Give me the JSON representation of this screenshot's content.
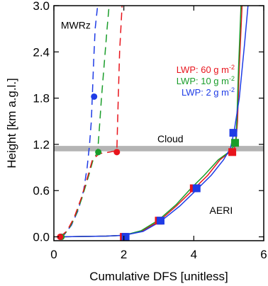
{
  "chart_data": {
    "type": "line",
    "title": "",
    "xlabel": "Cumulative DFS [unitless]",
    "ylabel": "Height [km a.g.l.]",
    "xlim": [
      0,
      6
    ],
    "ylim": [
      -0.05,
      3.0
    ],
    "xticks": [
      0,
      2,
      4,
      6
    ],
    "yticks": [
      0.0,
      0.6,
      1.2,
      1.8,
      2.4,
      3.0
    ],
    "xtick_labels": [
      "0",
      "2",
      "4",
      "6"
    ],
    "ytick_labels": [
      "0.0",
      "0.6",
      "1.2",
      "1.8",
      "2.4",
      "3.0"
    ],
    "grid": false,
    "legend": "top-right, inside",
    "cloud_band": {
      "label": "Cloud",
      "y_from": 1.11,
      "y_to": 1.18,
      "color": "#b4b4b4"
    },
    "annotations": [
      {
        "text": "MWRz",
        "x": 0.2,
        "y": 2.7
      },
      {
        "text": "AERI",
        "x": 4.45,
        "y": 0.3
      }
    ],
    "legend_entries": [
      {
        "text": "LWP: 60 g m",
        "sup": "-2",
        "color": "#e8141c"
      },
      {
        "text": "LWP: 10 g m",
        "sup": "-2",
        "color": "#1a9d2a"
      },
      {
        "text": "LWP: 2 g m",
        "sup": "-2",
        "color": "#1f3ce6"
      }
    ],
    "series": [
      {
        "group": "MWRz",
        "lwp": 2,
        "style": "dashed",
        "color": "#1f3ce6",
        "x": [
          0.16,
          0.3,
          0.5,
          0.7,
          0.85,
          0.95,
          1.02,
          1.07,
          1.1,
          1.14,
          1.18,
          1.25
        ],
        "y": [
          0.0,
          0.03,
          0.15,
          0.35,
          0.6,
          0.9,
          1.2,
          1.5,
          1.85,
          2.3,
          2.7,
          3.0
        ],
        "markers": [
          {
            "x": 0.2,
            "y": 0.0
          },
          {
            "x": 1.15,
            "y": 1.82
          }
        ]
      },
      {
        "group": "MWRz",
        "lwp": 10,
        "style": "dashed",
        "color": "#1a9d2a",
        "x": [
          0.2,
          0.4,
          0.6,
          0.8,
          1.0,
          1.12,
          1.25,
          1.3,
          1.36,
          1.45,
          1.52,
          1.58
        ],
        "y": [
          0.0,
          0.08,
          0.25,
          0.5,
          0.8,
          1.0,
          1.1,
          1.4,
          1.8,
          2.3,
          2.7,
          3.0
        ],
        "markers": [
          {
            "x": 0.22,
            "y": 0.0
          },
          {
            "x": 1.27,
            "y": 1.1
          }
        ]
      },
      {
        "group": "MWRz",
        "lwp": 60,
        "style": "dashed",
        "color": "#e8141c",
        "x": [
          0.18,
          0.38,
          0.58,
          0.78,
          0.98,
          1.1,
          1.3,
          1.6,
          1.8,
          1.84,
          1.88,
          1.95
        ],
        "y": [
          0.0,
          0.08,
          0.25,
          0.5,
          0.8,
          1.0,
          1.08,
          1.1,
          1.12,
          1.8,
          2.4,
          3.0
        ],
        "markers": [
          {
            "x": 0.18,
            "y": 0.0
          },
          {
            "x": 1.8,
            "y": 1.1
          }
        ]
      },
      {
        "group": "AERI",
        "lwp": 60,
        "style": "solid",
        "color": "#e8141c",
        "x": [
          0.1,
          0.8,
          1.5,
          2.0,
          2.5,
          3.0,
          3.5,
          4.0,
          4.4,
          4.75,
          5.0,
          5.12,
          5.2,
          5.25,
          5.3,
          5.38
        ],
        "y": [
          0.0,
          0.005,
          0.01,
          0.02,
          0.07,
          0.2,
          0.4,
          0.62,
          0.8,
          1.0,
          1.09,
          1.1,
          1.2,
          1.5,
          2.2,
          3.0
        ],
        "markers": [
          {
            "x": 2.0,
            "y": 0.0
          },
          {
            "x": 3.0,
            "y": 0.21
          },
          {
            "x": 4.0,
            "y": 0.63
          },
          {
            "x": 5.1,
            "y": 1.1
          }
        ]
      },
      {
        "group": "AERI",
        "lwp": 10,
        "style": "solid",
        "color": "#1a9d2a",
        "x": [
          0.1,
          0.8,
          1.5,
          2.0,
          2.5,
          3.0,
          3.5,
          3.9,
          4.3,
          4.7,
          5.0,
          5.15,
          5.2,
          5.23,
          5.28,
          5.35
        ],
        "y": [
          0.0,
          0.005,
          0.01,
          0.02,
          0.08,
          0.22,
          0.42,
          0.62,
          0.8,
          1.0,
          1.1,
          1.18,
          1.23,
          1.5,
          2.2,
          3.0
        ],
        "markers": [
          {
            "x": 5.18,
            "y": 1.22
          }
        ]
      },
      {
        "group": "AERI",
        "lwp": 2,
        "style": "solid",
        "color": "#1f3ce6",
        "x": [
          0.1,
          0.8,
          1.5,
          2.0,
          2.55,
          3.05,
          3.6,
          4.1,
          4.5,
          4.85,
          5.05,
          5.12,
          5.15,
          5.3,
          5.45,
          5.55
        ],
        "y": [
          0.0,
          0.005,
          0.01,
          0.02,
          0.07,
          0.2,
          0.4,
          0.62,
          0.8,
          1.0,
          1.15,
          1.3,
          1.36,
          1.8,
          2.5,
          3.0
        ],
        "markers": [
          {
            "x": 2.05,
            "y": 0.0
          },
          {
            "x": 3.05,
            "y": 0.21
          },
          {
            "x": 4.08,
            "y": 0.63
          },
          {
            "x": 5.13,
            "y": 1.35
          }
        ]
      }
    ]
  }
}
